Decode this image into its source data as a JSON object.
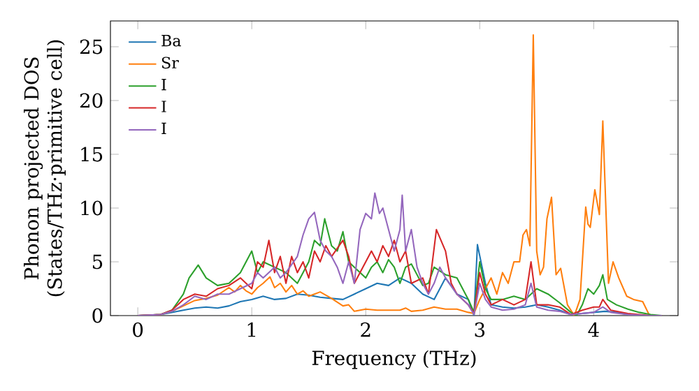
{
  "chart_data": {
    "type": "line",
    "xlabel": "Frequency (THz)",
    "ylabel": "Phonon projected DOS (States/THz·primitive cell)",
    "xlim": [
      -0.24,
      4.74
    ],
    "ylim": [
      0,
      27.4
    ],
    "xticks": [
      0,
      1,
      2,
      3,
      4
    ],
    "yticks": [
      0,
      5,
      10,
      15,
      20,
      25
    ],
    "legend": "top left",
    "grid": false,
    "marker": "none",
    "line_style": "solid",
    "series": [
      {
        "name": "Ba",
        "color": "#1f77b4",
        "x": [
          0,
          0.2,
          0.3,
          0.4,
          0.5,
          0.6,
          0.7,
          0.8,
          0.9,
          1.0,
          1.1,
          1.2,
          1.3,
          1.4,
          1.5,
          1.6,
          1.7,
          1.8,
          1.9,
          2.0,
          2.1,
          2.2,
          2.3,
          2.4,
          2.5,
          2.6,
          2.7,
          2.8,
          2.9,
          2.95,
          2.98,
          3.05,
          3.1,
          3.2,
          3.3,
          3.4,
          3.5,
          3.6,
          3.7,
          3.8,
          3.9,
          4.0,
          4.1,
          4.2,
          4.3
        ],
        "values": [
          0,
          0.1,
          0.3,
          0.5,
          0.7,
          0.8,
          0.7,
          0.9,
          1.3,
          1.5,
          1.8,
          1.5,
          1.6,
          2.0,
          1.9,
          1.7,
          1.6,
          1.5,
          2.0,
          2.5,
          3.0,
          2.8,
          3.5,
          3.0,
          2.0,
          1.5,
          3.5,
          2.0,
          1.5,
          0,
          6.6,
          3.0,
          1.0,
          0.8,
          0.7,
          0.8,
          1.0,
          0.8,
          0.5,
          0.1,
          0.2,
          0.3,
          0.4,
          0.3,
          0.1
        ]
      },
      {
        "name": "Sr",
        "color": "#ff7f0e",
        "x": [
          0,
          0.2,
          0.3,
          0.4,
          0.5,
          0.6,
          0.7,
          0.8,
          0.85,
          0.9,
          0.95,
          1.0,
          1.05,
          1.1,
          1.16,
          1.2,
          1.25,
          1.3,
          1.35,
          1.4,
          1.45,
          1.5,
          1.55,
          1.6,
          1.7,
          1.8,
          1.85,
          1.9,
          2.0,
          2.1,
          2.2,
          2.3,
          2.35,
          2.4,
          2.5,
          2.6,
          2.7,
          2.8,
          2.9,
          2.95,
          3.0,
          3.05,
          3.1,
          3.15,
          3.2,
          3.25,
          3.3,
          3.35,
          3.38,
          3.41,
          3.44,
          3.47,
          3.5,
          3.53,
          3.56,
          3.59,
          3.63,
          3.67,
          3.71,
          3.77,
          3.83,
          3.88,
          3.93,
          3.95,
          3.97,
          4.01,
          4.05,
          4.08,
          4.13,
          4.17,
          4.22,
          4.29,
          4.35,
          4.43,
          4.49,
          4.6
        ],
        "values": [
          0,
          0.1,
          0.4,
          0.9,
          1.4,
          1.6,
          1.9,
          2.6,
          2.2,
          2.8,
          2.3,
          2.0,
          2.6,
          3.0,
          3.6,
          2.6,
          3.0,
          2.2,
          2.8,
          2.0,
          2.3,
          1.8,
          2.0,
          2.2,
          1.6,
          0.9,
          1.0,
          0.4,
          0.6,
          0.5,
          0.5,
          0.5,
          0.7,
          0.4,
          0.5,
          0.8,
          0.6,
          0.6,
          0.3,
          0.2,
          1.5,
          2.5,
          3.5,
          2.0,
          4.0,
          3.0,
          5.0,
          5.0,
          7.5,
          8.0,
          6.5,
          26.1,
          6.0,
          3.8,
          4.5,
          9.0,
          11.0,
          3.8,
          4.4,
          1.0,
          0.0,
          1.5,
          10.1,
          8.5,
          8.2,
          11.7,
          9.4,
          18.1,
          3.0,
          5.0,
          3.5,
          1.8,
          1.5,
          1.3,
          0.0,
          0.0
        ]
      },
      {
        "name": "I",
        "color": "#2ca02c",
        "x": [
          0,
          0.2,
          0.3,
          0.4,
          0.45,
          0.53,
          0.6,
          0.7,
          0.8,
          0.9,
          1.0,
          1.05,
          1.1,
          1.2,
          1.3,
          1.4,
          1.45,
          1.5,
          1.55,
          1.6,
          1.64,
          1.7,
          1.75,
          1.8,
          1.85,
          1.9,
          2.0,
          2.05,
          2.1,
          2.15,
          2.2,
          2.25,
          2.3,
          2.35,
          2.4,
          2.5,
          2.55,
          2.6,
          2.7,
          2.8,
          2.9,
          2.95,
          3.0,
          3.05,
          3.1,
          3.2,
          3.3,
          3.4,
          3.5,
          3.6,
          3.7,
          3.8,
          3.85,
          3.9,
          3.95,
          4.0,
          4.05,
          4.08,
          4.12,
          4.2,
          4.3,
          4.4,
          4.5,
          4.6
        ],
        "values": [
          0,
          0.1,
          0.5,
          2.0,
          3.5,
          4.7,
          3.5,
          2.8,
          3.0,
          4.0,
          6.0,
          4.0,
          5.0,
          4.5,
          4.0,
          3.0,
          4.0,
          5.0,
          7.0,
          6.5,
          9.0,
          6.5,
          6.0,
          7.8,
          5.0,
          4.5,
          3.5,
          4.5,
          5.0,
          4.0,
          5.2,
          4.5,
          3.0,
          4.5,
          4.8,
          2.8,
          3.0,
          4.5,
          3.8,
          3.5,
          1.5,
          0.3,
          5.0,
          2.5,
          1.5,
          1.5,
          1.8,
          1.5,
          2.5,
          2.0,
          1.2,
          0.3,
          0,
          1.0,
          2.5,
          2.0,
          2.8,
          3.8,
          1.5,
          1.0,
          0.6,
          0.3,
          0.1,
          0
        ]
      },
      {
        "name": "I",
        "color": "#d62728",
        "x": [
          0,
          0.2,
          0.3,
          0.4,
          0.5,
          0.6,
          0.7,
          0.8,
          0.9,
          1.0,
          1.05,
          1.1,
          1.15,
          1.2,
          1.25,
          1.3,
          1.35,
          1.4,
          1.45,
          1.5,
          1.55,
          1.6,
          1.65,
          1.7,
          1.8,
          1.85,
          1.9,
          2.0,
          2.05,
          2.1,
          2.15,
          2.2,
          2.25,
          2.3,
          2.35,
          2.4,
          2.5,
          2.55,
          2.62,
          2.7,
          2.75,
          2.8,
          2.9,
          2.95,
          3.0,
          3.05,
          3.1,
          3.2,
          3.3,
          3.4,
          3.45,
          3.5,
          3.6,
          3.7,
          3.8,
          3.9,
          4.0,
          4.05,
          4.08,
          4.15,
          4.3,
          4.5,
          4.6
        ],
        "values": [
          0,
          0.1,
          0.5,
          1.5,
          2.0,
          1.8,
          2.5,
          2.8,
          3.5,
          2.5,
          5.0,
          4.5,
          7.0,
          4.0,
          5.5,
          3.0,
          5.5,
          4.0,
          5.0,
          3.5,
          6.0,
          5.0,
          6.5,
          5.5,
          7.0,
          5.5,
          3.0,
          5.0,
          6.0,
          5.0,
          6.5,
          5.5,
          7.0,
          5.0,
          6.0,
          3.0,
          3.5,
          2.0,
          8.0,
          6.0,
          3.0,
          2.0,
          1.0,
          0.2,
          4.0,
          2.0,
          1.0,
          1.5,
          1.0,
          1.5,
          5.0,
          1.0,
          1.0,
          0.8,
          0.1,
          0.5,
          0.8,
          0.8,
          1.5,
          0.5,
          0.2,
          0,
          0
        ]
      },
      {
        "name": "I",
        "color": "#9467bd",
        "x": [
          0,
          0.2,
          0.3,
          0.4,
          0.5,
          0.6,
          0.7,
          0.8,
          0.9,
          1.0,
          1.05,
          1.1,
          1.2,
          1.25,
          1.3,
          1.4,
          1.45,
          1.5,
          1.55,
          1.6,
          1.65,
          1.7,
          1.75,
          1.8,
          1.85,
          1.9,
          1.95,
          2.0,
          2.05,
          2.08,
          2.12,
          2.15,
          2.2,
          2.25,
          2.3,
          2.32,
          2.35,
          2.4,
          2.45,
          2.5,
          2.55,
          2.6,
          2.65,
          2.7,
          2.8,
          2.9,
          2.95,
          3.0,
          3.05,
          3.1,
          3.2,
          3.3,
          3.4,
          3.45,
          3.5,
          3.6,
          3.7,
          3.8,
          3.9,
          4.0,
          4.08,
          4.15,
          4.3,
          4.5,
          4.6
        ],
        "values": [
          0,
          0.1,
          0.4,
          1.0,
          1.8,
          1.5,
          2.0,
          2.0,
          2.5,
          3.0,
          4.0,
          3.5,
          4.5,
          3.5,
          4.0,
          5.5,
          7.5,
          9.0,
          9.6,
          7.0,
          6.0,
          5.5,
          4.5,
          3.0,
          5.0,
          3.0,
          8.0,
          9.5,
          9.0,
          11.4,
          9.5,
          10.0,
          8.0,
          6.0,
          8.0,
          11.2,
          6.0,
          8.0,
          4.5,
          3.0,
          2.0,
          3.0,
          4.5,
          3.5,
          2.0,
          1.0,
          0.1,
          3.0,
          1.5,
          0.8,
          0.5,
          0.6,
          1.0,
          3.0,
          0.8,
          0.5,
          0.4,
          0.1,
          0.2,
          0.3,
          0.8,
          0.3,
          0.1,
          0,
          0
        ]
      }
    ]
  }
}
